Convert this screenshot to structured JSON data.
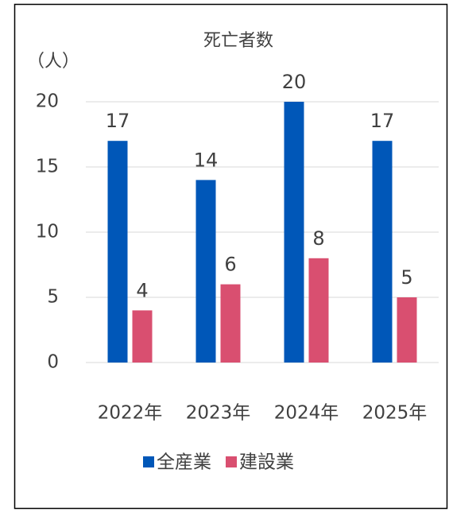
{
  "chart_data": {
    "type": "bar",
    "title": "死亡者数",
    "y_label": "（人）",
    "categories": [
      "2022年",
      "2023年",
      "2024年",
      "2025年"
    ],
    "series": [
      {
        "name": "全産業",
        "color": "#0057b8",
        "values": [
          17,
          14,
          20,
          17
        ]
      },
      {
        "name": "建設業",
        "color": "#d94f70",
        "values": [
          4,
          6,
          8,
          5
        ]
      }
    ],
    "ylim": [
      0,
      20
    ],
    "yticks": [
      0,
      5,
      10,
      15,
      20
    ],
    "grid": true,
    "legend": "bottom"
  }
}
